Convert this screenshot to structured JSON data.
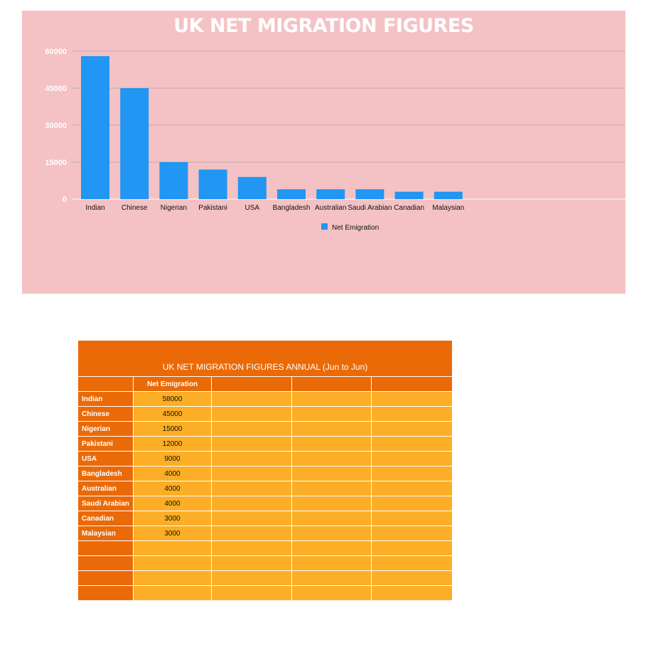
{
  "colors": {
    "panel_bg": "#f4c2c4",
    "bar": "#2196f3",
    "table_dark": "#ea6a08",
    "table_light": "#fbae26"
  },
  "chart_data": {
    "type": "bar",
    "title": "UK NET MIGRATION FIGURES",
    "categories": [
      "Indian",
      "Chinese",
      "Nigerian",
      "Pakistani",
      "USA",
      "Bangladesh",
      "Australian",
      "Saudi Arabian",
      "Canadian",
      "Malaysian"
    ],
    "series": [
      {
        "name": "Net  Emigration",
        "values": [
          58000,
          45000,
          15000,
          12000,
          9000,
          4000,
          4000,
          4000,
          3000,
          3000
        ]
      }
    ],
    "yticks": [
      "0",
      "15000",
      "30000",
      "45000",
      "60000"
    ],
    "ylim": [
      0,
      60000
    ],
    "xlabel": "",
    "ylabel": "",
    "grid": true,
    "legend": "bottom"
  },
  "table": {
    "title": "UK NET MIGRATION FIGURES ANNUAL (Jun to Jun)",
    "header": [
      "",
      "Net  Emigration",
      "",
      "",
      ""
    ],
    "rows": [
      {
        "label": "Indian",
        "value": "58000"
      },
      {
        "label": "Chinese",
        "value": "45000"
      },
      {
        "label": "Nigerian",
        "value": "15000"
      },
      {
        "label": "Pakistani",
        "value": "12000"
      },
      {
        "label": "USA",
        "value": "9000"
      },
      {
        "label": "Bangladesh",
        "value": "4000"
      },
      {
        "label": "Australian",
        "value": "4000"
      },
      {
        "label": "Saudi Arabian",
        "value": "4000"
      },
      {
        "label": "Canadian",
        "value": "3000"
      },
      {
        "label": "Malaysian",
        "value": "3000"
      },
      {
        "label": "",
        "value": ""
      },
      {
        "label": "",
        "value": ""
      },
      {
        "label": "",
        "value": ""
      },
      {
        "label": "",
        "value": ""
      }
    ]
  }
}
